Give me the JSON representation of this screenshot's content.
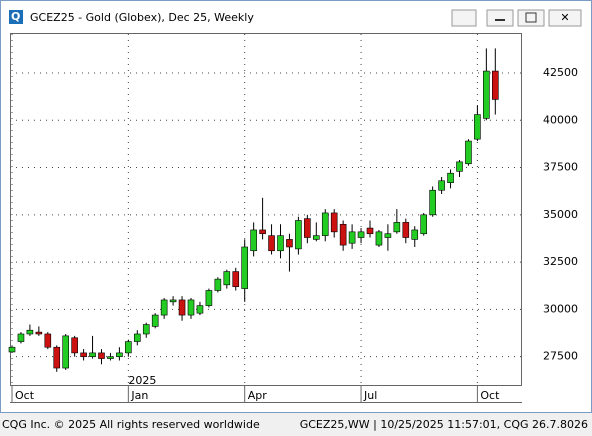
{
  "window_title": "GCEZ25 - Gold (Globex), Dec 25, Weekly",
  "chart_data": {
    "type": "candlestick",
    "categories": [
      "Oct",
      null,
      null,
      null,
      null,
      null,
      null,
      null,
      null,
      null,
      null,
      null,
      null,
      "Jan",
      null,
      null,
      null,
      null,
      null,
      null,
      null,
      null,
      null,
      null,
      null,
      null,
      "Apr",
      null,
      null,
      null,
      null,
      null,
      null,
      null,
      null,
      null,
      null,
      null,
      null,
      "Jul",
      null,
      null,
      null,
      null,
      null,
      null,
      null,
      null,
      null,
      null,
      null,
      null,
      "Oct",
      null,
      null
    ],
    "year_label": "2025",
    "open": [
      27750,
      28300,
      28700,
      28800,
      28700,
      28000,
      26900,
      28500,
      27700,
      27500,
      27700,
      27400,
      27500,
      27700,
      28300,
      28700,
      29100,
      29700,
      30400,
      30500,
      29700,
      29800,
      30200,
      31000,
      31300,
      32000,
      31100,
      33100,
      34200,
      33900,
      33100,
      33700,
      33200,
      34800,
      33700,
      33900,
      35100,
      34500,
      33500,
      33800,
      34300,
      33400,
      33800,
      34100,
      34600,
      33700,
      34000,
      35000,
      36300,
      36700,
      37300,
      37700,
      39000,
      40100,
      42600
    ],
    "high": [
      28100,
      28800,
      29200,
      29100,
      28800,
      28100,
      28700,
      28600,
      27900,
      28600,
      27900,
      27700,
      28000,
      28400,
      28900,
      29300,
      29800,
      30600,
      30700,
      30700,
      30600,
      30400,
      31100,
      31700,
      32100,
      32200,
      33700,
      34600,
      35900,
      34500,
      34500,
      34000,
      34900,
      35000,
      34600,
      35300,
      35300,
      34700,
      34500,
      34300,
      34700,
      34200,
      34500,
      35300,
      34800,
      34400,
      35100,
      36500,
      37000,
      37400,
      37900,
      39000,
      40800,
      43800,
      43800
    ],
    "low": [
      27700,
      28200,
      28600,
      28600,
      27900,
      26700,
      26800,
      27500,
      27300,
      27400,
      27100,
      27300,
      27300,
      27500,
      28100,
      28500,
      29000,
      29500,
      30200,
      29400,
      29500,
      29700,
      30100,
      30900,
      31100,
      31000,
      30400,
      32800,
      33700,
      32900,
      32700,
      32000,
      32900,
      33500,
      33600,
      33600,
      33800,
      33100,
      33200,
      33500,
      33800,
      33300,
      33100,
      34000,
      33500,
      33300,
      33900,
      34900,
      36100,
      36400,
      37000,
      37600,
      38900,
      40000,
      40300
    ],
    "close": [
      28000,
      28700,
      28900,
      28700,
      28000,
      26900,
      28600,
      27700,
      27500,
      27700,
      27400,
      27500,
      27700,
      28300,
      28700,
      29200,
      29700,
      30500,
      30500,
      29700,
      30500,
      30200,
      31000,
      31600,
      32000,
      31200,
      33300,
      34200,
      34000,
      33100,
      33900,
      33300,
      34700,
      33800,
      33900,
      35100,
      34100,
      33400,
      34100,
      34100,
      34000,
      34100,
      34000,
      34600,
      33800,
      34200,
      35000,
      36300,
      36800,
      37200,
      37800,
      38900,
      40300,
      42600,
      41100
    ],
    "up_color": "#22cc22",
    "down_color": "#cc1111",
    "ylim": [
      25950,
      44560
    ],
    "yticks": [
      27500,
      30000,
      32500,
      35000,
      37500,
      40000,
      42500
    ],
    "grid": true
  },
  "footer": {
    "left": "CQG Inc. © 2025 All rights reserved worldwide",
    "right": "GCEZ25,WW | 10/25/2025 11:57:01, CQG 26.7.8026"
  }
}
